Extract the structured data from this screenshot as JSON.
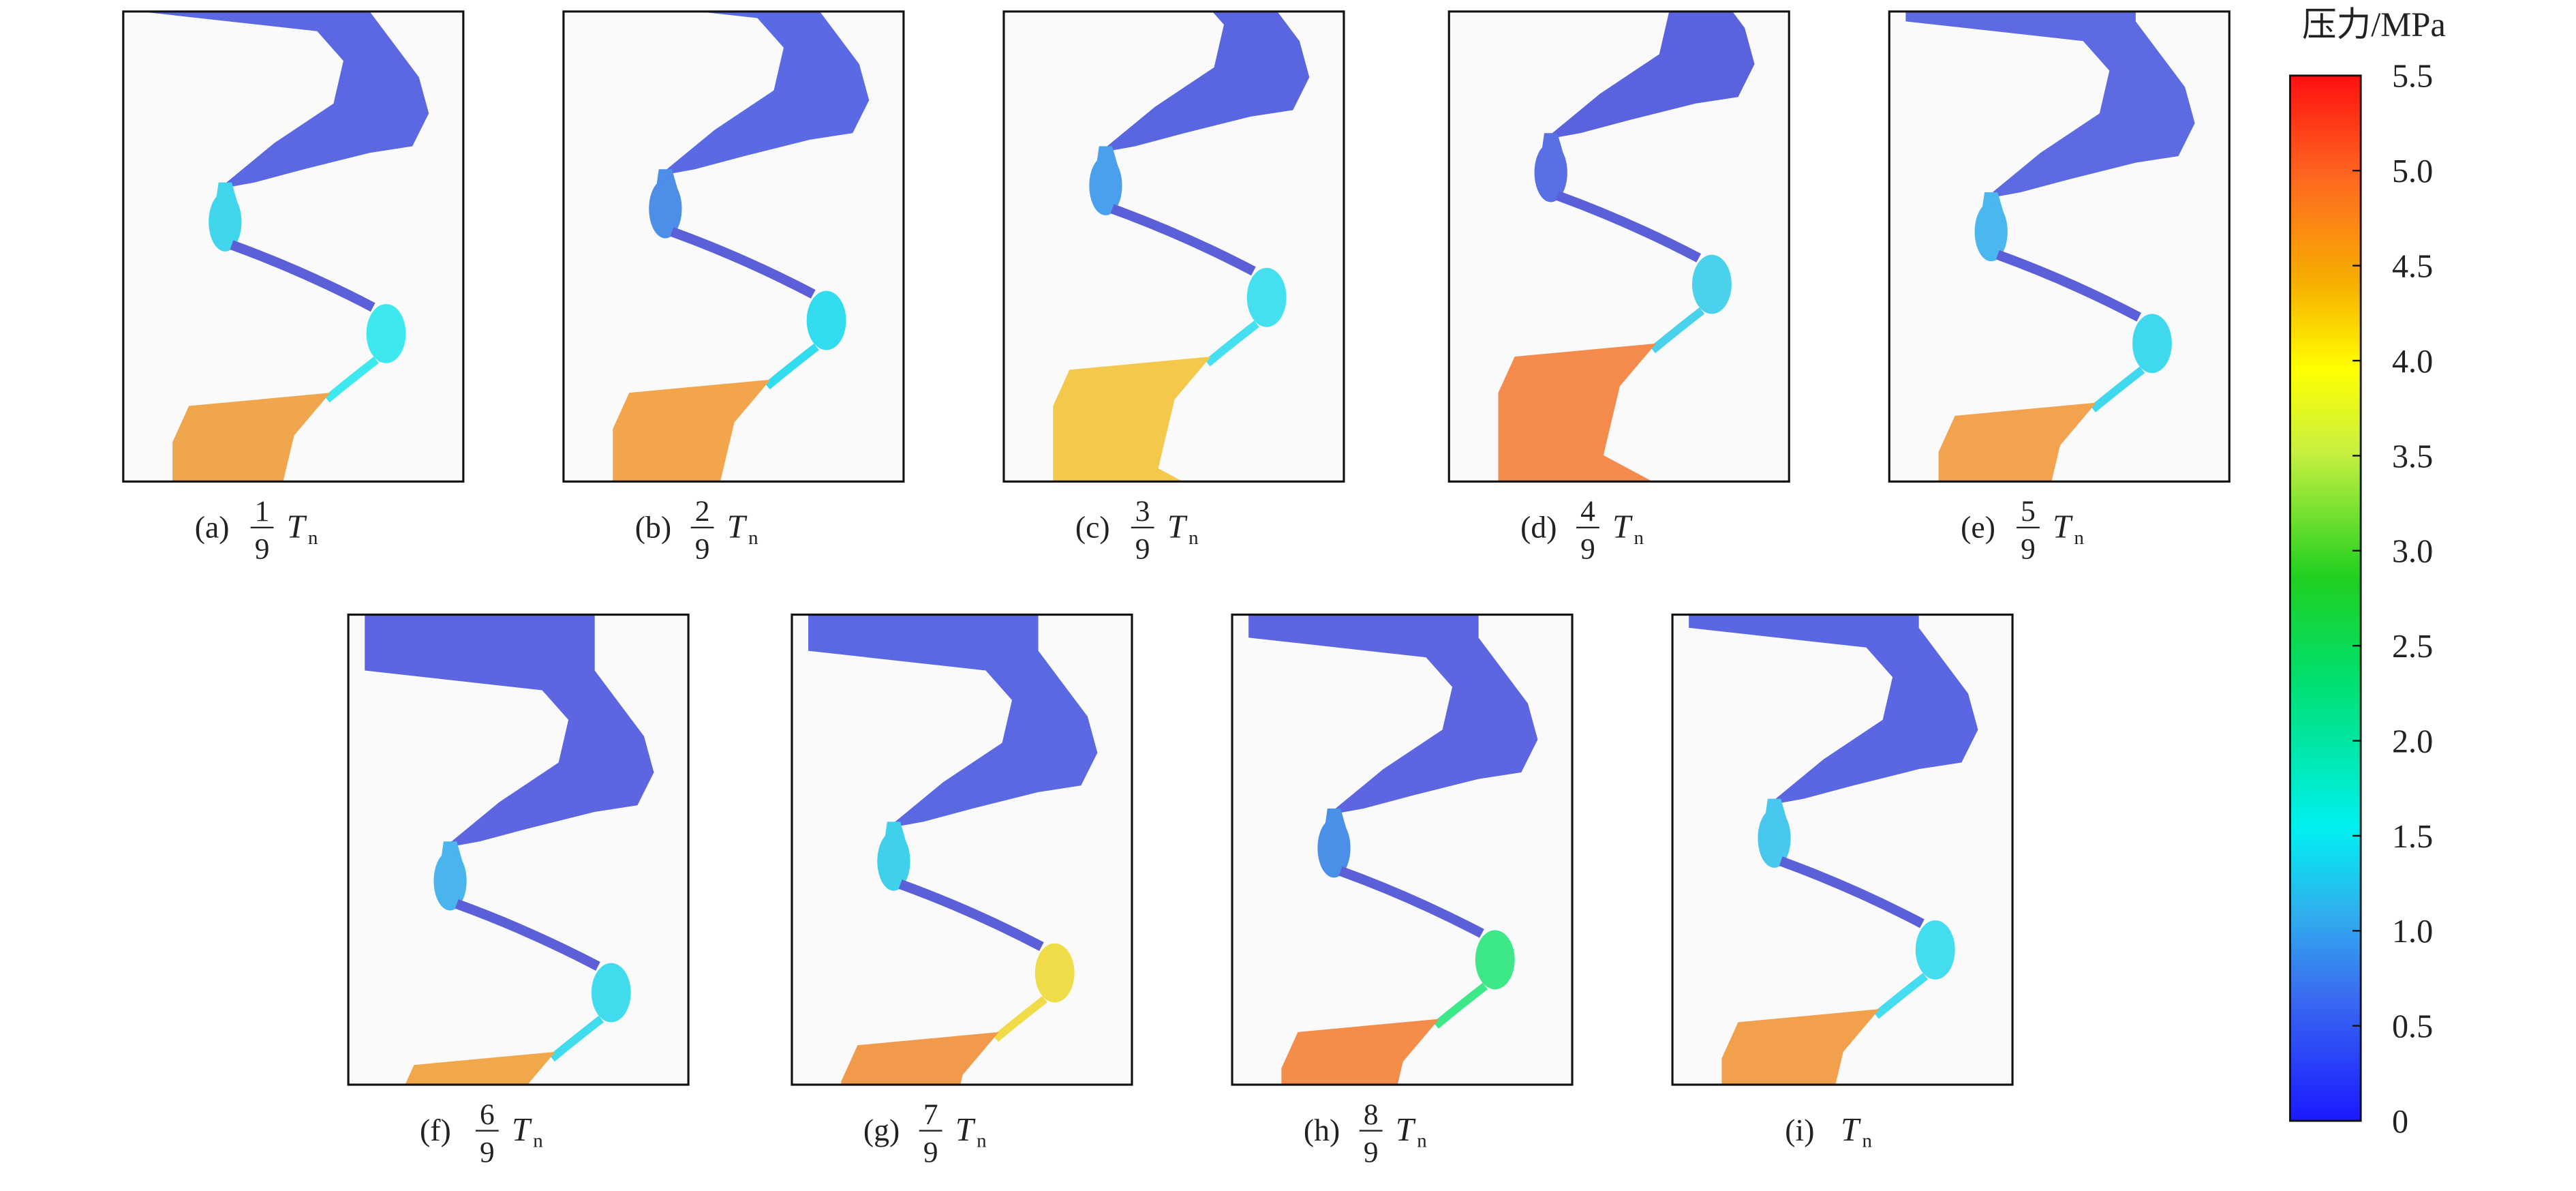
{
  "panels": [
    {
      "tag": "(a)",
      "fraction": {
        "numerator": "1",
        "denominator": "9"
      }
    },
    {
      "tag": "(b)",
      "fraction": {
        "numerator": "2",
        "denominator": "9"
      }
    },
    {
      "tag": "(c)",
      "fraction": {
        "numerator": "3",
        "denominator": "9"
      }
    },
    {
      "tag": "(d)",
      "fraction": {
        "numerator": "4",
        "denominator": "9"
      }
    },
    {
      "tag": "(e)",
      "fraction": {
        "numerator": "5",
        "denominator": "9"
      }
    },
    {
      "tag": "(f)",
      "fraction": {
        "numerator": "6",
        "denominator": "9"
      }
    },
    {
      "tag": "(g)",
      "fraction": {
        "numerator": "7",
        "denominator": "9"
      }
    },
    {
      "tag": "(h)",
      "fraction": {
        "numerator": "8",
        "denominator": "9"
      }
    },
    {
      "tag": "(i)"
    }
  ],
  "period": {
    "symbol": "T",
    "subscript": "n"
  },
  "colorbar": {
    "title": "压力/MPa",
    "lim": [
      0,
      5.5
    ],
    "ticks": [
      0,
      0.5,
      {
        "value": 1,
        "label": "1.0"
      },
      1.5,
      {
        "value": 2,
        "label": "2.0"
      },
      2.5,
      {
        "value": 3,
        "label": "3.0"
      },
      3.5,
      {
        "value": 4,
        "label": "4.0"
      },
      4.5,
      {
        "value": 5,
        "label": "5.0"
      },
      5.5
    ]
  }
}
